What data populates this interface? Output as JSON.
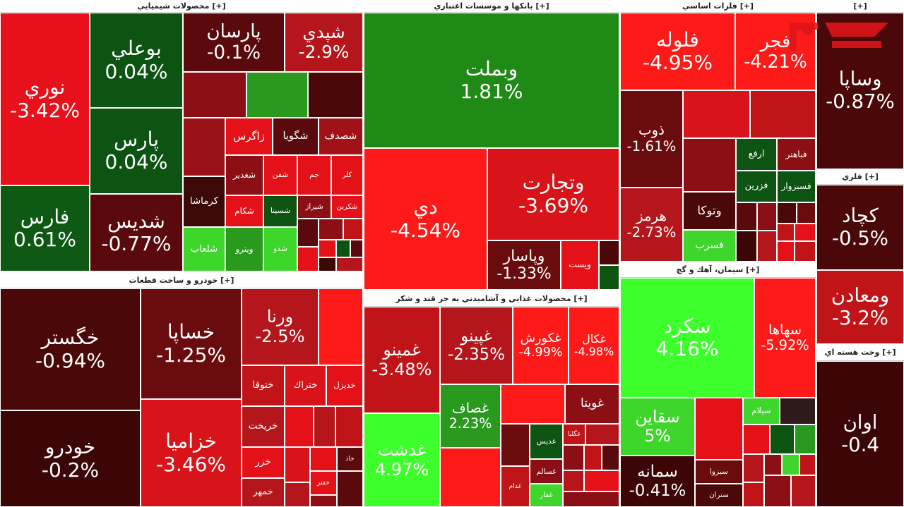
{
  "sectors": [
    {
      "title": "محصولات شيميايي [+]",
      "tiles": [
        {
          "name": "نوري",
          "change": "-3.42%",
          "color": "#e8101a"
        },
        {
          "name": "فارس",
          "change": "0.61%",
          "color": "#0e5a14"
        },
        {
          "name": "بوعلي",
          "change": "0.04%",
          "color": "#0d5413"
        },
        {
          "name": "پارس",
          "change": "0.04%",
          "color": "#0d5413"
        },
        {
          "name": "شديس",
          "change": "-0.77%",
          "color": "#5a0a0c"
        },
        {
          "name": "پارسان",
          "change": "-0.1%",
          "color": "#5a0a0c"
        },
        {
          "name": "شپدي",
          "change": "-2.9%",
          "color": "#b5161b"
        },
        {
          "name": "زاگرس",
          "color": "#e41218"
        },
        {
          "name": "شگويا",
          "color": "#5a0a0c"
        },
        {
          "name": "شصدف",
          "color": "#a01218"
        },
        {
          "name": "كرماشا",
          "color": "#3c0808"
        },
        {
          "name": "شغدير",
          "color": "#8b0f14"
        },
        {
          "name": "شفن",
          "color": "#e41218"
        },
        {
          "name": "جم",
          "color": "#e41218"
        },
        {
          "name": "كلر",
          "color": "#e41218"
        },
        {
          "name": "شكام",
          "color": "#e41218"
        },
        {
          "name": "شسينا",
          "color": "#0d5413"
        },
        {
          "name": "شيراز",
          "color": "#8b0f14"
        },
        {
          "name": "شكربن",
          "color": "#e41218"
        },
        {
          "name": "شلعاب",
          "color": "#3fd62c"
        },
        {
          "name": "ويترو",
          "color": "#2a9a1e"
        },
        {
          "name": "شدو",
          "color": "#3fd62c"
        }
      ]
    },
    {
      "title": "بانكها و موسسات اعتباري [+]",
      "tiles": [
        {
          "name": "وبملت",
          "change": "1.81%",
          "color": "#1f8a16"
        },
        {
          "name": "دي",
          "change": "-4.54%",
          "color": "#ff1a1a"
        },
        {
          "name": "وتجارت",
          "change": "-3.69%",
          "color": "#d8131a"
        },
        {
          "name": "وپاسار",
          "change": "-1.33%",
          "color": "#6a0b0d"
        },
        {
          "name": "ويست",
          "color": "#e41218"
        }
      ]
    },
    {
      "title": "فلزات اساسي [+]",
      "tiles": [
        {
          "name": "فلوله",
          "change": "-4.95%",
          "color": "#ff1a1a"
        },
        {
          "name": "فجر",
          "change": "-4.21%",
          "color": "#ff1a1a"
        },
        {
          "name": "ذوب",
          "change": "-1.61%",
          "color": "#6a0b0d"
        },
        {
          "name": "هرمز",
          "change": "-2.73%",
          "color": "#b5161b"
        },
        {
          "name": "ارفع",
          "color": "#0d5413"
        },
        {
          "name": "فباهنر",
          "color": "#8b0f14"
        },
        {
          "name": "فزرين",
          "color": "#0d5413"
        },
        {
          "name": "فسبزوار",
          "color": "#0d5413"
        },
        {
          "name": "وتوكا",
          "color": "#4a0808"
        },
        {
          "name": "فسرب",
          "color": "#3fd62c"
        }
      ]
    },
    {
      "title": "[+]",
      "tiles": [
        {
          "name": "وساپا",
          "change": "-0.87%",
          "color": "#4a0808"
        }
      ]
    },
    {
      "title": "فلزي [+]",
      "tiles": [
        {
          "name": "كچاد",
          "change": "-0.5%",
          "color": "#4a0808"
        },
        {
          "name": "ومعادن",
          "change": "-3.2%",
          "color": "#c01419"
        }
      ]
    },
    {
      "title": "وخت هسته اي [+]",
      "tiles": [
        {
          "name": "اوان",
          "change": "-0.4",
          "color": "#3c0606"
        }
      ]
    },
    {
      "title": "خودرو و ساخت قطعات [+]",
      "tiles": [
        {
          "name": "خگستر",
          "change": "-0.94%",
          "color": "#4a0808"
        },
        {
          "name": "خودرو",
          "change": "-0.2%",
          "color": "#3c0606"
        },
        {
          "name": "خساپا",
          "change": "-1.25%",
          "color": "#6a0b0d"
        },
        {
          "name": "خزاميا",
          "change": "-3.46%",
          "color": "#d8131a"
        },
        {
          "name": "ورنا",
          "change": "-2.5%",
          "color": "#b5161b"
        },
        {
          "name": "ختوقا",
          "color": "#c01419"
        },
        {
          "name": "ختراك",
          "color": "#d8131a"
        },
        {
          "name": "خديزل",
          "color": "#e41218"
        },
        {
          "name": "خريخت",
          "color": "#b5161b"
        },
        {
          "name": "خزر",
          "color": "#e41218"
        },
        {
          "name": "خاذ",
          "color": "#5a0a0c"
        },
        {
          "name": "خمهر",
          "color": "#b5161b"
        },
        {
          "name": "خفتر",
          "color": "#e41218"
        }
      ]
    },
    {
      "title": "محصولات غذايي و آشاميدني به جز قند و شكر [+]",
      "tiles": [
        {
          "name": "غمينو",
          "change": "-3.48%",
          "color": "#c01419"
        },
        {
          "name": "غدشت",
          "change": "4.97%",
          "color": "#3dff2b"
        },
        {
          "name": "غپينو",
          "change": "-2.35%",
          "color": "#b5161b"
        },
        {
          "name": "غكورش",
          "change": "-4.99%",
          "color": "#ff1a1a"
        },
        {
          "name": "غكال",
          "change": "-4.98%",
          "color": "#ff1a1a"
        },
        {
          "name": "غصاف",
          "change": "2.23%",
          "color": "#2a9a1e"
        },
        {
          "name": "غويتا",
          "color": "#8b0f14"
        },
        {
          "name": "غديس",
          "color": "#0d5413"
        },
        {
          "name": "غگليا",
          "color": "#c01419"
        },
        {
          "name": "غسالم",
          "color": "#8b0f14"
        },
        {
          "name": "غدام",
          "color": "#c01419"
        },
        {
          "name": "غفار",
          "color": "#3fd62c"
        }
      ]
    },
    {
      "title": "سيمان، آهك و گچ [+]",
      "tiles": [
        {
          "name": "سكرد",
          "change": "4.16%",
          "color": "#3dff2b"
        },
        {
          "name": "سهاها",
          "change": "-5.92%",
          "color": "#ff1a1a"
        },
        {
          "name": "سقاين",
          "change": "5%",
          "color": "#3fd62c"
        },
        {
          "name": "سمانه",
          "change": "-0.41%",
          "color": "#3c0606"
        },
        {
          "name": "سيلام",
          "color": "#3fd62c"
        },
        {
          "name": "سبزوا",
          "color": "#6a0b0d"
        },
        {
          "name": "ستران",
          "color": "#4a0808"
        }
      ]
    }
  ]
}
